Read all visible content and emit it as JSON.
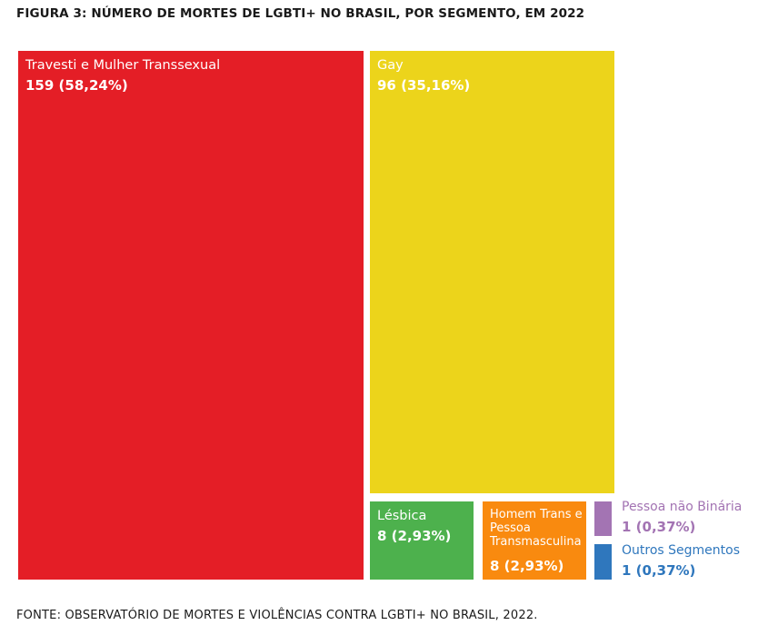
{
  "chart_data": {
    "type": "treemap",
    "title": "FIGURA 3: NÚMERO DE MORTES DE LGBTI+ NO BRASIL, POR SEGMENTO, EM 2022",
    "source": "FONTE: OBSERVATÓRIO DE MORTES E VIOLÊNCIAS CONTRA LGBTI+ NO BRASIL, 2022.",
    "segments": [
      {
        "name": "Travesti e Mulher Transsexual",
        "value": 159,
        "percent": 58.24,
        "label": "159 (58,24%)",
        "color": "#e41e26"
      },
      {
        "name": "Gay",
        "value": 96,
        "percent": 35.16,
        "label": "96 (35,16%)",
        "color": "#ecd41b"
      },
      {
        "name": "Lésbica",
        "value": 8,
        "percent": 2.93,
        "label": "8 (2,93%)",
        "color": "#4db14d"
      },
      {
        "name": "Homem Trans e Pessoa Transmasculina",
        "value": 8,
        "percent": 2.93,
        "label": "8 (2,93%)",
        "color": "#f98a0f"
      },
      {
        "name": "Pessoa não Binária",
        "value": 1,
        "percent": 0.37,
        "label": "1 (0,37%)",
        "color": "#a374b3"
      },
      {
        "name": "Outros Segmentos",
        "value": 1,
        "percent": 0.37,
        "label": "1 (0,37%)",
        "color": "#2f77bd"
      }
    ]
  }
}
